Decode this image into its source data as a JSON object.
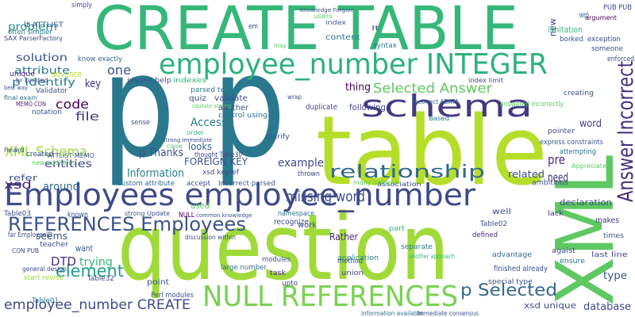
{
  "words": [
    "CREATE TABLE",
    "p p",
    "table",
    "question",
    "XML",
    "Employees employee_number",
    "employee_number INTEGER",
    "schema",
    "Answer Incorrect",
    "NULL REFERENCES",
    "REFERENCES Employees",
    "relationship",
    "Selected Answer",
    "p Selected",
    "element",
    "employee_number CREATE",
    "solution",
    "problem",
    "attribute",
    "p Identify",
    "XML Schema",
    "xsd",
    "entities",
    "code",
    "file",
    "DTD",
    "trying",
    "around",
    "refer",
    "key",
    "one",
    "advance",
    "Information",
    "p Thanks",
    "FOREIGN KEY",
    "Access",
    "looks",
    "example",
    "missing word",
    "Rather",
    "thing",
    "following",
    "word",
    "pre",
    "need",
    "related",
    "type",
    "database",
    "xsd unique",
    "declaration",
    "limitation",
    "web",
    "content",
    "index",
    "users",
    "syntax",
    "Incorrect ADATA",
    "index limit",
    "answered incorrectly",
    "creating",
    "express constraints",
    "attempting",
    "Appreciate",
    "pointer",
    "ambitious",
    "lack",
    "well",
    "makes",
    "times",
    "last line",
    "agaist",
    "ensure",
    "finished already",
    "advantage",
    "special type",
    "Table02",
    "defined",
    "part",
    "separate",
    "another approach",
    "application",
    "work",
    "association",
    "many indexes",
    "thrown",
    "Based",
    "duplicate",
    "another",
    "control using",
    "quiz",
    "validate",
    "please help",
    "indexes",
    "parsed text",
    "Update strong",
    "custom attribute",
    "accept",
    "Incorrect parsed",
    "used",
    "NULL",
    "recognize",
    "namespace",
    "modules",
    "discussion within",
    "large number",
    "point",
    "Perl modules",
    "task",
    "upto",
    "method",
    "union",
    "information available",
    "Immediate consensus",
    "seems",
    "known",
    "want",
    "teacher",
    "start revise",
    "far EmployeeID",
    "Table32",
    "Table03",
    "CON PUB",
    "Table01",
    "general design",
    "created",
    "heard",
    "MEMO CON",
    "final exam",
    "notation",
    "Validator",
    "best way",
    "unique",
    "often simpler",
    "SAX ParserFactory",
    "lt ATTLIST",
    "know exactly",
    "simply",
    "em",
    "may",
    "knowledge Forgive",
    "lt",
    "PUB PUB",
    "argument",
    "borked",
    "exception",
    "someone",
    "enforced",
    "sense",
    "strong Immediate",
    "thought Table30",
    "xsd keyref",
    "clarify",
    "order",
    "case",
    "wrap",
    "strong Update",
    "common knowledge",
    "new additions",
    "ATTLIST MEMO",
    "br Limited",
    "new"
  ]
}
